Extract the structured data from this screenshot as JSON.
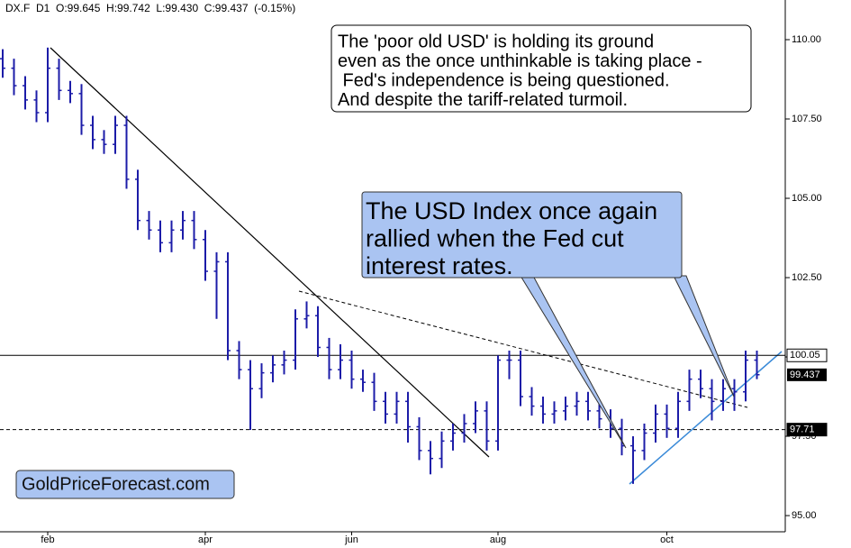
{
  "chart_data": {
    "type": "ohlc",
    "title": "DX.F  D1  O:99.645  H:99.742  L:99.430  C:99.437  (-0.15%)",
    "categories": [
      null,
      null,
      null,
      null,
      "feb",
      null,
      null,
      null,
      null,
      null,
      null,
      null,
      null,
      null,
      null,
      null,
      null,
      null,
      "apr",
      null,
      null,
      null,
      null,
      null,
      null,
      null,
      null,
      null,
      null,
      null,
      null,
      "jun",
      null,
      null,
      null,
      null,
      null,
      null,
      null,
      null,
      null,
      null,
      null,
      null,
      "aug",
      null,
      null,
      null,
      null,
      null,
      null,
      null,
      null,
      null,
      null,
      null,
      null,
      null,
      null,
      "oct",
      null,
      null,
      null,
      null,
      null,
      null,
      null,
      null
    ],
    "open": [
      109.4,
      109.1,
      108.55,
      108.1,
      107.7,
      109.1,
      108.4,
      108.3,
      107.3,
      106.85,
      106.7,
      107.3,
      105.6,
      104.3,
      104.0,
      103.6,
      104.0,
      104.3,
      103.7,
      102.7,
      103.0,
      100.2,
      99.6,
      99.0,
      99.5,
      99.75,
      99.9,
      101.2,
      101.3,
      100.3,
      99.6,
      99.9,
      99.3,
      99.2,
      98.6,
      98.2,
      98.6,
      97.8,
      97.05,
      96.8,
      97.35,
      97.6,
      97.9,
      98.3,
      97.35,
      99.9,
      99.9,
      98.75,
      98.45,
      98.2,
      98.3,
      98.45,
      98.6,
      98.3,
      98.05,
      97.75,
      97.2,
      97.05,
      97.6,
      98.2,
      97.75,
      98.6,
      99.3,
      99.0,
      98.6,
      99.0,
      98.9,
      99.9
    ],
    "high": [
      109.7,
      109.4,
      108.85,
      108.4,
      109.75,
      109.4,
      108.7,
      108.6,
      107.6,
      107.15,
      107.6,
      107.6,
      105.9,
      104.6,
      104.3,
      104.3,
      104.6,
      104.6,
      104.0,
      103.3,
      103.3,
      100.5,
      99.9,
      99.8,
      100.05,
      100.2,
      101.5,
      101.75,
      101.6,
      100.6,
      100.4,
      100.2,
      99.6,
      99.5,
      98.9,
      98.9,
      98.9,
      98.1,
      97.35,
      97.65,
      97.9,
      98.2,
      98.6,
      98.6,
      100.05,
      100.2,
      100.2,
      99.05,
      98.75,
      98.6,
      98.75,
      98.9,
      98.9,
      98.6,
      98.35,
      98.05,
      97.5,
      97.9,
      98.5,
      98.5,
      98.9,
      99.6,
      99.6,
      99.3,
      99.3,
      99.3,
      100.2,
      100.2
    ],
    "low": [
      108.8,
      108.25,
      107.8,
      107.4,
      107.4,
      108.1,
      108.0,
      107.0,
      106.55,
      106.4,
      106.4,
      105.3,
      104.0,
      103.7,
      103.3,
      103.3,
      103.7,
      103.4,
      102.4,
      101.2,
      99.9,
      99.3,
      97.7,
      98.7,
      99.2,
      99.45,
      99.6,
      100.9,
      100.0,
      99.3,
      99.3,
      99.0,
      98.9,
      98.3,
      97.9,
      97.9,
      97.3,
      96.75,
      96.3,
      96.5,
      97.05,
      97.3,
      97.6,
      97.05,
      97.05,
      99.3,
      98.45,
      98.15,
      97.9,
      97.9,
      98.0,
      98.15,
      98.0,
      97.75,
      97.45,
      96.9,
      96.0,
      96.75,
      97.3,
      97.45,
      97.45,
      98.3,
      98.7,
      98.0,
      98.3,
      98.3,
      98.6,
      99.3
    ],
    "close": [
      109.1,
      108.55,
      108.1,
      107.7,
      109.1,
      108.4,
      108.3,
      107.3,
      106.85,
      106.7,
      107.3,
      105.6,
      104.3,
      104.0,
      103.6,
      104.0,
      104.3,
      103.7,
      102.7,
      103.0,
      100.2,
      99.6,
      99.0,
      99.5,
      99.75,
      99.9,
      101.2,
      101.3,
      100.3,
      99.6,
      99.9,
      99.3,
      99.2,
      98.6,
      98.2,
      98.6,
      97.8,
      97.05,
      96.8,
      97.35,
      97.6,
      97.9,
      98.3,
      97.35,
      99.9,
      99.9,
      98.75,
      98.45,
      98.2,
      98.3,
      98.45,
      98.6,
      98.3,
      98.05,
      97.75,
      97.2,
      97.05,
      97.6,
      98.2,
      97.75,
      98.6,
      99.3,
      99.0,
      98.6,
      99.0,
      98.9,
      99.9,
      99.44
    ],
    "color": "#1c1ca8",
    "ylim": [
      94.49,
      111.25
    ],
    "yticks": [
      {
        "value": 95,
        "label": "95.00"
      },
      {
        "value": 97.5,
        "label": "97.50"
      },
      {
        "value": 100,
        "label": "100.00"
      },
      {
        "value": 102.5,
        "label": "102.50"
      },
      {
        "value": 105,
        "label": "105.00"
      },
      {
        "value": 107.5,
        "label": "107.50"
      },
      {
        "value": 110,
        "label": "110.00"
      }
    ],
    "hlines": [
      {
        "value": 100.05,
        "style": "solid"
      },
      {
        "value": 97.71,
        "style": "dashed"
      }
    ],
    "last_price": 99.437,
    "note": [
      "The 'poor old USD' is holding its ground",
      "even as the once unthinkable is taking place -",
      " Fed's independence is being questioned.",
      "And despite the tariff-related turmoil."
    ],
    "callout": [
      "The USD Index once again",
      "rallied when the Fed cut",
      "interest rates."
    ],
    "watermark": "GoldPriceForecast.com"
  }
}
